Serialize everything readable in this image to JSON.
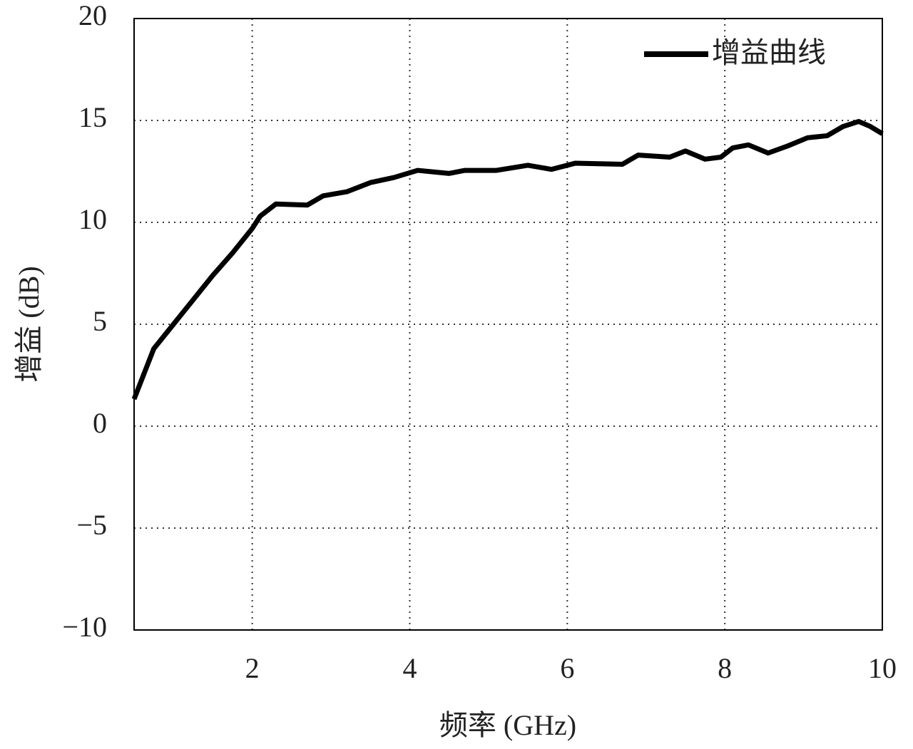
{
  "chart_data": {
    "type": "line",
    "x_label": "频率 (GHz)",
    "y_label": "增益 (dB)",
    "xlim": [
      0.5,
      10
    ],
    "ylim": [
      -10,
      20
    ],
    "xticks": [
      2,
      4,
      6,
      8,
      10
    ],
    "yticks": [
      {
        "value": -10,
        "label": "−10"
      },
      {
        "value": -5,
        "label": "−5"
      },
      0,
      5,
      10,
      15,
      20
    ],
    "grid": true,
    "legend": "upper right",
    "x": [
      0.5,
      0.75,
      1.0,
      1.25,
      1.5,
      1.75,
      2.0,
      2.1,
      2.3,
      2.7,
      2.9,
      3.2,
      3.5,
      3.8,
      4.1,
      4.5,
      4.7,
      5.1,
      5.5,
      5.8,
      6.1,
      6.7,
      6.9,
      7.3,
      7.5,
      7.75,
      7.95,
      8.1,
      8.3,
      8.55,
      8.8,
      9.05,
      9.3,
      9.5,
      9.7,
      9.85,
      10.0
    ],
    "series": [
      {
        "name": "增益曲线",
        "color": "#000000",
        "values": [
          1.33,
          3.8,
          5.0,
          6.2,
          7.4,
          8.5,
          9.7,
          10.3,
          10.9,
          10.85,
          11.3,
          11.5,
          11.95,
          12.2,
          12.55,
          12.4,
          12.55,
          12.55,
          12.8,
          12.6,
          12.9,
          12.85,
          13.3,
          13.2,
          13.5,
          13.1,
          13.2,
          13.65,
          13.8,
          13.4,
          13.75,
          14.15,
          14.25,
          14.7,
          14.95,
          14.7,
          14.35
        ]
      }
    ]
  }
}
